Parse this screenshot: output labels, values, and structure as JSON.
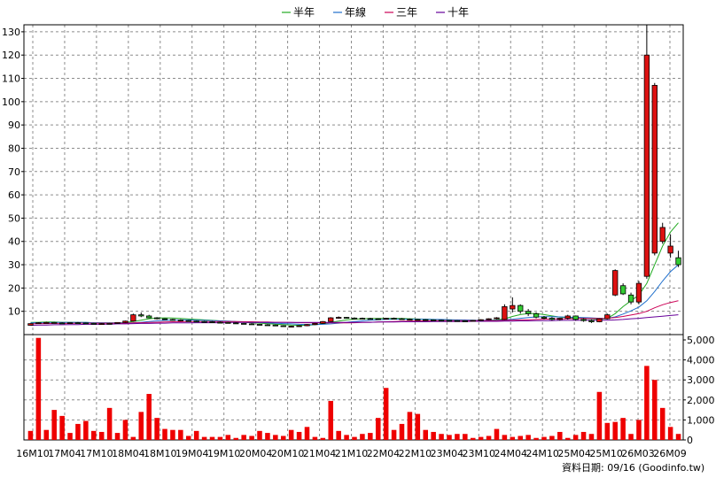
{
  "chart_data": {
    "type": "candlestick+line+bar",
    "legend": {
      "placement": "top-center",
      "items": [
        {
          "name": "半年",
          "color": "#22aa22"
        },
        {
          "name": "年線",
          "color": "#1f6fcc"
        },
        {
          "name": "三年",
          "color": "#cc0055"
        },
        {
          "name": "十年",
          "color": "#660099"
        }
      ]
    },
    "price_axis": {
      "range": [
        0,
        133
      ],
      "ticks": [
        10,
        20,
        30,
        40,
        50,
        60,
        70,
        80,
        90,
        100,
        110,
        120,
        130
      ]
    },
    "volume_axis": {
      "range": [
        0,
        5000
      ],
      "ticks": [
        "0",
        "1,000",
        "2,000",
        "3,000",
        "4,000",
        "5,000"
      ]
    },
    "x_labels": [
      "16M10",
      "17M04",
      "17M10",
      "18M04",
      "18M10",
      "19M04",
      "19M10",
      "20M04",
      "20M10",
      "21M04",
      "21M10",
      "22M04",
      "22M10",
      "23M04",
      "23M10",
      "24M04",
      "24M10",
      "25M04",
      "25M10",
      "26M03",
      "26M09"
    ],
    "candles": [
      [
        4,
        4.8,
        4.5,
        4.7
      ],
      [
        4.7,
        5.3,
        4.6,
        5.1
      ],
      [
        5.1,
        5.5,
        4.9,
        5.2
      ],
      [
        5.2,
        5.4,
        4.8,
        5.0
      ],
      [
        5.0,
        5.3,
        4.7,
        4.9
      ],
      [
        4.9,
        5.2,
        4.6,
        5.1
      ],
      [
        5.1,
        5.4,
        4.8,
        5.0
      ],
      [
        5.0,
        5.2,
        4.6,
        4.8
      ],
      [
        4.8,
        5.0,
        4.4,
        4.6
      ],
      [
        4.6,
        4.9,
        4.3,
        4.7
      ],
      [
        4.7,
        5.0,
        4.5,
        4.8
      ],
      [
        4.8,
        5.3,
        4.7,
        5.2
      ],
      [
        5.2,
        6.0,
        5.0,
        5.8
      ],
      [
        5.8,
        9.0,
        5.6,
        8.5
      ],
      [
        8.5,
        9.5,
        7.5,
        8.0
      ],
      [
        8.0,
        8.5,
        7.0,
        7.2
      ],
      [
        7.2,
        7.5,
        6.5,
        6.8
      ],
      [
        6.8,
        7.0,
        6.2,
        6.5
      ],
      [
        6.5,
        6.8,
        6.0,
        6.3
      ],
      [
        6.3,
        6.6,
        5.8,
        6.0
      ],
      [
        6.0,
        6.2,
        5.6,
        5.8
      ],
      [
        5.8,
        6.0,
        5.4,
        5.6
      ],
      [
        5.6,
        5.9,
        5.3,
        5.5
      ],
      [
        5.5,
        5.8,
        5.1,
        5.3
      ],
      [
        5.3,
        5.6,
        5.0,
        5.2
      ],
      [
        5.2,
        5.4,
        4.8,
        5.0
      ],
      [
        5.0,
        5.3,
        4.6,
        4.8
      ],
      [
        4.8,
        5.0,
        4.4,
        4.6
      ],
      [
        4.6,
        4.9,
        4.2,
        4.4
      ],
      [
        4.4,
        4.6,
        4.0,
        4.2
      ],
      [
        4.2,
        4.5,
        3.9,
        4.1
      ],
      [
        4.1,
        4.3,
        3.6,
        3.8
      ],
      [
        3.8,
        4.0,
        3.4,
        3.5
      ],
      [
        3.5,
        3.8,
        3.2,
        3.6
      ],
      [
        3.6,
        4.0,
        3.4,
        3.8
      ],
      [
        3.8,
        4.5,
        3.6,
        4.3
      ],
      [
        4.3,
        5.0,
        4.1,
        4.8
      ],
      [
        4.8,
        5.8,
        4.6,
        5.6
      ],
      [
        5.6,
        7.5,
        5.4,
        7.2
      ],
      [
        7.2,
        7.8,
        6.8,
        7.4
      ],
      [
        7.4,
        7.6,
        6.9,
        7.1
      ],
      [
        7.1,
        7.4,
        6.8,
        7.0
      ],
      [
        7.0,
        7.3,
        6.7,
        6.9
      ],
      [
        6.9,
        7.2,
        6.6,
        6.8
      ],
      [
        6.8,
        7.0,
        6.5,
        6.7
      ],
      [
        6.7,
        7.2,
        6.5,
        7.0
      ],
      [
        7.0,
        7.3,
        6.7,
        6.8
      ],
      [
        6.8,
        7.1,
        6.5,
        6.6
      ],
      [
        6.6,
        6.9,
        6.4,
        6.5
      ],
      [
        6.5,
        6.7,
        6.2,
        6.4
      ],
      [
        6.4,
        6.6,
        6.1,
        6.3
      ],
      [
        6.3,
        6.5,
        6.0,
        6.2
      ],
      [
        6.2,
        6.4,
        6.0,
        6.1
      ],
      [
        6.1,
        6.3,
        5.9,
        6.0
      ],
      [
        6.0,
        6.2,
        5.8,
        5.9
      ],
      [
        5.9,
        6.1,
        5.7,
        5.8
      ],
      [
        5.8,
        6.3,
        5.6,
        6.1
      ],
      [
        6.1,
        6.6,
        5.9,
        6.4
      ],
      [
        6.4,
        7.0,
        6.2,
        6.8
      ],
      [
        6.8,
        7.5,
        6.5,
        7.2
      ],
      [
        6.5,
        13.0,
        6.3,
        12.0
      ],
      [
        11.0,
        16.0,
        9.5,
        12.5
      ],
      [
        12.5,
        13.0,
        9.0,
        10.0
      ],
      [
        10.0,
        11.0,
        8.0,
        9.0
      ],
      [
        9.0,
        9.5,
        7.0,
        7.5
      ],
      [
        7.5,
        8.0,
        6.5,
        7.0
      ],
      [
        7.0,
        7.5,
        6.0,
        6.5
      ],
      [
        6.5,
        7.2,
        6.0,
        7.0
      ],
      [
        7.0,
        8.5,
        6.5,
        8.0
      ],
      [
        8.0,
        8.2,
        6.0,
        6.5
      ],
      [
        6.5,
        7.0,
        5.5,
        6.0
      ],
      [
        6.0,
        6.5,
        5.0,
        5.5
      ],
      [
        5.5,
        7.0,
        5.3,
        6.8
      ],
      [
        6.8,
        9.0,
        6.5,
        8.5
      ],
      [
        17.0,
        28.0,
        16.5,
        27.5
      ],
      [
        21.0,
        22.0,
        17.0,
        17.5
      ],
      [
        17.0,
        18.0,
        13.0,
        14.0
      ],
      [
        14.0,
        23.0,
        13.0,
        22.0
      ],
      [
        25.0,
        133.0,
        24.0,
        120.0
      ],
      [
        35.0,
        108.0,
        34.0,
        107.0
      ],
      [
        40.0,
        48.0,
        39.0,
        46.0
      ],
      [
        35.0,
        43.0,
        33.0,
        38.0
      ],
      [
        33.0,
        36.0,
        29.0,
        30.0
      ]
    ],
    "ma_half": [
      5.2,
      5.3,
      5.4,
      5.4,
      5.3,
      5.3,
      5.2,
      5.2,
      5.1,
      5.0,
      5.0,
      5.0,
      5.2,
      5.6,
      6.2,
      6.8,
      7.1,
      7.2,
      7.1,
      6.9,
      6.7,
      6.5,
      6.3,
      6.1,
      5.9,
      5.7,
      5.5,
      5.3,
      5.1,
      4.9,
      4.7,
      4.5,
      4.3,
      4.1,
      4.0,
      4.0,
      4.2,
      4.6,
      5.2,
      5.8,
      6.3,
      6.6,
      6.8,
      6.9,
      6.9,
      6.9,
      6.9,
      6.9,
      6.8,
      6.7,
      6.6,
      6.5,
      6.4,
      6.3,
      6.2,
      6.1,
      6.0,
      6.0,
      6.1,
      6.3,
      6.8,
      7.8,
      8.6,
      9.0,
      9.0,
      8.6,
      8.0,
      7.5,
      7.3,
      7.2,
      7.0,
      6.8,
      6.6,
      6.9,
      9.0,
      12.0,
      14.5,
      17.0,
      22.0,
      30.0,
      38.0,
      44.0,
      48.0
    ],
    "ma_year": [
      5.0,
      5.1,
      5.1,
      5.2,
      5.2,
      5.2,
      5.2,
      5.2,
      5.1,
      5.1,
      5.0,
      5.0,
      5.0,
      5.1,
      5.3,
      5.6,
      5.9,
      6.1,
      6.2,
      6.3,
      6.3,
      6.2,
      6.1,
      6.0,
      5.9,
      5.8,
      5.6,
      5.5,
      5.3,
      5.2,
      5.0,
      4.9,
      4.7,
      4.6,
      4.4,
      4.3,
      4.3,
      4.4,
      4.6,
      4.9,
      5.3,
      5.6,
      5.9,
      6.2,
      6.4,
      6.5,
      6.6,
      6.6,
      6.6,
      6.6,
      6.6,
      6.5,
      6.5,
      6.4,
      6.3,
      6.3,
      6.2,
      6.1,
      6.1,
      6.1,
      6.3,
      6.6,
      7.0,
      7.3,
      7.6,
      7.7,
      7.7,
      7.6,
      7.5,
      7.4,
      7.3,
      7.2,
      7.0,
      7.0,
      7.6,
      8.8,
      10.2,
      11.8,
      14.5,
      18.5,
      23.0,
      27.0,
      30.0
    ],
    "ma_3y": [
      4.6,
      4.7,
      4.7,
      4.8,
      4.8,
      4.8,
      4.9,
      4.9,
      4.9,
      4.9,
      4.9,
      4.9,
      4.9,
      5.0,
      5.1,
      5.2,
      5.3,
      5.4,
      5.5,
      5.5,
      5.6,
      5.6,
      5.6,
      5.6,
      5.6,
      5.6,
      5.6,
      5.5,
      5.5,
      5.4,
      5.4,
      5.3,
      5.3,
      5.2,
      5.1,
      5.1,
      5.0,
      5.0,
      5.0,
      5.0,
      5.0,
      5.1,
      5.2,
      5.3,
      5.4,
      5.5,
      5.6,
      5.7,
      5.8,
      5.9,
      5.9,
      6.0,
      6.0,
      6.0,
      6.0,
      6.0,
      6.0,
      6.0,
      6.0,
      6.0,
      6.1,
      6.2,
      6.3,
      6.4,
      6.5,
      6.6,
      6.7,
      6.8,
      6.8,
      6.9,
      6.9,
      6.9,
      6.9,
      7.0,
      7.3,
      7.8,
      8.4,
      9.0,
      10.0,
      11.5,
      12.8,
      13.8,
      14.5
    ],
    "ma_10y": [
      4.0,
      4.1,
      4.1,
      4.2,
      4.2,
      4.3,
      4.3,
      4.4,
      4.4,
      4.5,
      4.5,
      4.6,
      4.6,
      4.7,
      4.8,
      4.8,
      4.9,
      4.9,
      5.0,
      5.0,
      5.0,
      5.1,
      5.1,
      5.1,
      5.1,
      5.2,
      5.2,
      5.2,
      5.2,
      5.2,
      5.2,
      5.2,
      5.2,
      5.2,
      5.2,
      5.2,
      5.2,
      5.2,
      5.2,
      5.2,
      5.2,
      5.3,
      5.3,
      5.3,
      5.4,
      5.4,
      5.4,
      5.5,
      5.5,
      5.5,
      5.5,
      5.6,
      5.6,
      5.6,
      5.6,
      5.6,
      5.7,
      5.7,
      5.7,
      5.7,
      5.8,
      5.8,
      5.9,
      5.9,
      6.0,
      6.0,
      6.0,
      6.1,
      6.1,
      6.1,
      6.2,
      6.2,
      6.2,
      6.2,
      6.3,
      6.5,
      6.8,
      7.0,
      7.3,
      7.6,
      7.9,
      8.2,
      8.5
    ],
    "volumes": [
      450,
      5100,
      500,
      1500,
      1200,
      350,
      800,
      950,
      450,
      400,
      1600,
      350,
      1000,
      150,
      1400,
      2300,
      1100,
      550,
      500,
      500,
      200,
      450,
      150,
      150,
      150,
      250,
      100,
      250,
      200,
      450,
      350,
      250,
      200,
      500,
      400,
      650,
      150,
      100,
      1950,
      450,
      250,
      150,
      300,
      350,
      1100,
      2600,
      500,
      800,
      1400,
      1300,
      500,
      400,
      300,
      250,
      300,
      300,
      100,
      150,
      200,
      550,
      250,
      150,
      200,
      250,
      100,
      150,
      200,
      400,
      100,
      250,
      400,
      300,
      2400,
      850,
      900,
      1100,
      300,
      1000,
      3700,
      3000,
      1600,
      650,
      300
    ]
  },
  "footer": {
    "date_label": "資料日期: 09/16",
    "source": "(Goodinfo.tw)"
  }
}
